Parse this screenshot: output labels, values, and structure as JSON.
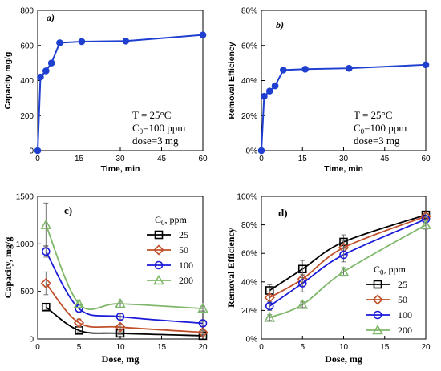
{
  "chart_data": [
    {
      "panel": "a)",
      "type": "line",
      "xlabel": "Time, min",
      "ylabel": "Capacity mg/g",
      "xlim": [
        0,
        60
      ],
      "ylim": [
        0,
        800
      ],
      "xticks": [
        "0",
        "15",
        "30",
        "45",
        "60"
      ],
      "yticks": [
        "0",
        "200",
        "400",
        "600",
        "800"
      ],
      "color": "#1f3fd0",
      "series": [
        {
          "x": [
            0,
            1,
            3,
            5,
            8,
            16,
            32,
            60
          ],
          "y": [
            0,
            420,
            455,
            500,
            615,
            622,
            625,
            660
          ]
        }
      ],
      "annotation": {
        "line1": "T = 25°C",
        "line2a": "C",
        "line2sub": "0",
        "line2b": "=100 ppm",
        "line3": "dose=3 mg"
      }
    },
    {
      "panel": "b)",
      "type": "line",
      "xlabel": "Time, min",
      "ylabel": "Removal Efficiency",
      "xlim": [
        0,
        60
      ],
      "ylim": [
        0,
        80
      ],
      "xticks": [
        "0",
        "15",
        "30",
        "45",
        "60"
      ],
      "yticks": [
        "0%",
        "20%",
        "40%",
        "60%",
        "80%"
      ],
      "color": "#1f3fd0",
      "series": [
        {
          "x": [
            0,
            1,
            3,
            5,
            8,
            16,
            32,
            60
          ],
          "y": [
            0,
            31,
            34,
            37,
            46,
            46.5,
            47,
            49
          ]
        }
      ],
      "annotation": {
        "line1": "T = 25°C",
        "line2a": "C",
        "line2sub": "0",
        "line2b": "=100 ppm",
        "line3": "dose=3 mg"
      }
    },
    {
      "panel": "c)",
      "type": "line",
      "xlabel": "Dose, mg",
      "ylabel": "Capacity, mg/g",
      "xlim": [
        0,
        20
      ],
      "ylim": [
        0,
        1500
      ],
      "xticks": [
        "0",
        "5",
        "10",
        "15",
        "20"
      ],
      "yticks": [
        "0",
        "500",
        "1000",
        "1500"
      ],
      "legend_title": {
        "a": "C",
        "sub": "0",
        "b": ", ppm"
      },
      "series": [
        {
          "name": "25",
          "marker": "square",
          "color": "#000000",
          "x": [
            1,
            5,
            10,
            20
          ],
          "y": [
            335,
            90,
            60,
            35
          ],
          "err": [
            30,
            15,
            15,
            10
          ]
        },
        {
          "name": "50",
          "marker": "diamond",
          "color": "#c0502a",
          "x": [
            1,
            5,
            10,
            20
          ],
          "y": [
            585,
            170,
            125,
            70
          ],
          "err": [
            120,
            40,
            30,
            20
          ]
        },
        {
          "name": "100",
          "marker": "circle",
          "color": "#1a1ad8",
          "x": [
            1,
            5,
            10,
            20
          ],
          "y": [
            920,
            320,
            235,
            165
          ],
          "err": [
            60,
            40,
            30,
            20
          ]
        },
        {
          "name": "200",
          "marker": "triangle",
          "color": "#7fb86a",
          "x": [
            1,
            5,
            10,
            20
          ],
          "y": [
            1200,
            370,
            370,
            320
          ],
          "err": [
            230,
            40,
            40,
            25
          ]
        }
      ]
    },
    {
      "panel": "d)",
      "type": "line",
      "xlabel": "Dose, mg",
      "ylabel": "Removal Efficiency",
      "xlim": [
        0,
        20
      ],
      "ylim": [
        0,
        100
      ],
      "xticks": [
        "0",
        "5",
        "10",
        "15",
        "20"
      ],
      "yticks": [
        "0%",
        "20%",
        "40%",
        "60%",
        "80%",
        "100%"
      ],
      "legend_title": {
        "a": "C",
        "sub": "0",
        "b": ", ppm"
      },
      "series": [
        {
          "name": "25",
          "marker": "square",
          "color": "#000000",
          "x": [
            1,
            5,
            10,
            20
          ],
          "y": [
            34,
            49,
            68,
            87
          ],
          "err": [
            4,
            6,
            5,
            2
          ]
        },
        {
          "name": "50",
          "marker": "diamond",
          "color": "#c0502a",
          "x": [
            1,
            5,
            10,
            20
          ],
          "y": [
            29,
            42,
            64,
            86
          ],
          "err": [
            4,
            5,
            5,
            2
          ]
        },
        {
          "name": "100",
          "marker": "circle",
          "color": "#1a1ad8",
          "x": [
            1,
            5,
            10,
            20
          ],
          "y": [
            23,
            39,
            59,
            84
          ],
          "err": [
            3,
            6,
            5,
            2
          ]
        },
        {
          "name": "200",
          "marker": "triangle",
          "color": "#7fb86a",
          "x": [
            1,
            5,
            10,
            20
          ],
          "y": [
            15,
            24,
            47,
            80
          ],
          "err": [
            2,
            2,
            3,
            3
          ]
        }
      ]
    }
  ]
}
